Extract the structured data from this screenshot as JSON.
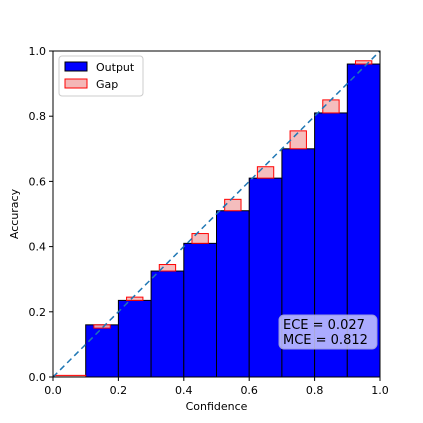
{
  "chart_data": {
    "type": "bar",
    "xlabel": "Confidence",
    "ylabel": "Accuracy",
    "xlim": [
      0,
      1
    ],
    "ylim": [
      0,
      1
    ],
    "x_ticks": [
      "0.0",
      "0.2",
      "0.4",
      "0.6",
      "0.8",
      "1.0"
    ],
    "y_ticks": [
      "0.0",
      "0.2",
      "0.4",
      "0.6",
      "0.8",
      "1.0"
    ],
    "grid": false,
    "legend_position": "top-left",
    "bin_edges": [
      0.0,
      0.1,
      0.2,
      0.3,
      0.4,
      0.5,
      0.6,
      0.7,
      0.8,
      0.9,
      1.0
    ],
    "series": [
      {
        "name": "Output",
        "color": "#0000ff",
        "values": [
          0.0,
          0.16,
          0.235,
          0.325,
          0.41,
          0.51,
          0.61,
          0.7,
          0.81,
          0.96
        ]
      },
      {
        "name": "Gap",
        "color": "#f4b6b6",
        "edge_color": "#ff0000",
        "values": [
          0.005,
          0.15,
          0.245,
          0.345,
          0.44,
          0.545,
          0.645,
          0.755,
          0.85,
          0.97
        ]
      }
    ],
    "reference_line": {
      "from": [
        0,
        0
      ],
      "to": [
        1,
        1
      ],
      "style": "dashed",
      "color": "#1f77b4"
    },
    "annotations": [
      "ECE = 0.027",
      "MCE = 0.812"
    ]
  }
}
